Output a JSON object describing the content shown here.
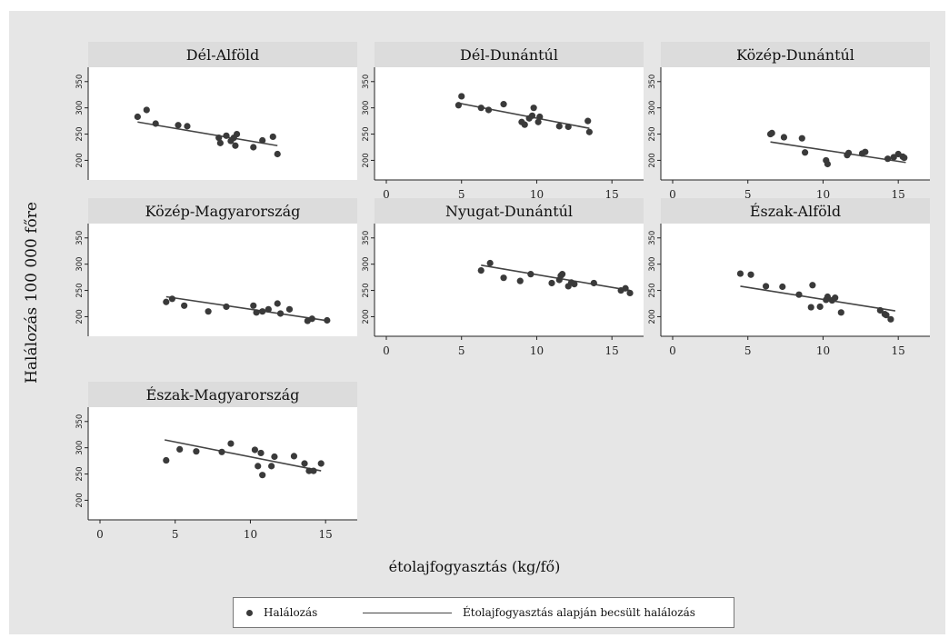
{
  "y_axis_title": "Halálozás 100 000 főre",
  "x_axis_title": "étolajfogyasztás (kg/fő)",
  "legend": {
    "points_label": "Halálozás",
    "line_label": "Étolajfogyasztás alapján becsült halálozás"
  },
  "colors": {
    "background": "#e6e6e6",
    "panel_header": "#dcdcdc",
    "marker": "#3a3a3a",
    "fit_line": "#444444"
  },
  "chart_data": {
    "type": "scatter",
    "layout": "small multiples with linear fit line",
    "xlim": [
      0,
      16.5
    ],
    "ylim": [
      180,
      360
    ],
    "x_ticks": [
      0,
      5,
      10,
      15
    ],
    "y_ticks": [
      200,
      250,
      300,
      350
    ],
    "grid": false,
    "legend_position": "bottom",
    "panels": [
      {
        "title": "Dél-Alföld",
        "x_axis_shown": false,
        "points": [
          [
            2.5,
            283
          ],
          [
            3.1,
            296
          ],
          [
            3.7,
            270
          ],
          [
            5.2,
            267
          ],
          [
            5.8,
            265
          ],
          [
            7.9,
            243
          ],
          [
            8,
            233
          ],
          [
            8.4,
            247
          ],
          [
            8.7,
            237
          ],
          [
            8.9,
            243
          ],
          [
            9,
            228
          ],
          [
            9.1,
            250
          ],
          [
            10.2,
            225
          ],
          [
            10.8,
            238
          ],
          [
            11.5,
            245
          ],
          [
            11.8,
            212
          ]
        ],
        "fit": [
          [
            2.5,
            273
          ],
          [
            11.8,
            228
          ]
        ]
      },
      {
        "title": "Dél-Dunántúl",
        "x_axis_shown": true,
        "points": [
          [
            4.8,
            305
          ],
          [
            5,
            322
          ],
          [
            6.3,
            300
          ],
          [
            6.8,
            296
          ],
          [
            7.8,
            307
          ],
          [
            9,
            273
          ],
          [
            9.2,
            268
          ],
          [
            9.5,
            280
          ],
          [
            9.7,
            285
          ],
          [
            9.8,
            300
          ],
          [
            10.1,
            273
          ],
          [
            10.2,
            283
          ],
          [
            11.5,
            265
          ],
          [
            12.1,
            264
          ],
          [
            13.4,
            275
          ],
          [
            13.5,
            254
          ]
        ],
        "fit": [
          [
            4.8,
            309
          ],
          [
            13.5,
            261
          ]
        ]
      },
      {
        "title": "Közép-Dunántúl",
        "x_axis_shown": true,
        "points": [
          [
            6.5,
            250
          ],
          [
            6.6,
            252
          ],
          [
            7.4,
            244
          ],
          [
            8.6,
            242
          ],
          [
            8.8,
            215
          ],
          [
            10.2,
            200
          ],
          [
            10.3,
            193
          ],
          [
            11.6,
            210
          ],
          [
            11.7,
            214
          ],
          [
            12.6,
            213
          ],
          [
            12.8,
            216
          ],
          [
            14.3,
            203
          ],
          [
            14.7,
            206
          ],
          [
            15,
            212
          ],
          [
            15.3,
            207
          ],
          [
            15.4,
            205
          ]
        ],
        "fit": [
          [
            6.5,
            235
          ],
          [
            15.5,
            196
          ]
        ]
      },
      {
        "title": "Közép-Magyarország",
        "x_axis_shown": false,
        "points": [
          [
            4.4,
            228
          ],
          [
            4.8,
            234
          ],
          [
            5.6,
            221
          ],
          [
            7.2,
            210
          ],
          [
            8.4,
            219
          ],
          [
            10.2,
            221
          ],
          [
            10.4,
            208
          ],
          [
            10.8,
            210
          ],
          [
            11.2,
            214
          ],
          [
            11.8,
            225
          ],
          [
            12,
            206
          ],
          [
            12.6,
            214
          ],
          [
            13.8,
            192
          ],
          [
            14.1,
            196
          ],
          [
            15.1,
            193
          ]
        ],
        "fit": [
          [
            4.4,
            238
          ],
          [
            15.2,
            192
          ]
        ]
      },
      {
        "title": "Nyugat-Dunántúl",
        "x_axis_shown": true,
        "points": [
          [
            6.3,
            288
          ],
          [
            6.9,
            302
          ],
          [
            7.8,
            274
          ],
          [
            8.9,
            268
          ],
          [
            9.6,
            281
          ],
          [
            11,
            264
          ],
          [
            11.5,
            270
          ],
          [
            11.6,
            278
          ],
          [
            11.7,
            281
          ],
          [
            12.1,
            258
          ],
          [
            12.3,
            265
          ],
          [
            12.5,
            262
          ],
          [
            13.8,
            264
          ],
          [
            15.6,
            250
          ],
          [
            15.9,
            254
          ],
          [
            16.2,
            245
          ]
        ],
        "fit": [
          [
            6.3,
            298
          ],
          [
            16.2,
            250
          ]
        ]
      },
      {
        "title": "Észak-Alföld",
        "x_axis_shown": true,
        "points": [
          [
            4.5,
            282
          ],
          [
            5.2,
            280
          ],
          [
            6.2,
            258
          ],
          [
            7.3,
            257
          ],
          [
            8.4,
            242
          ],
          [
            9.2,
            218
          ],
          [
            9.3,
            260
          ],
          [
            9.8,
            219
          ],
          [
            10.2,
            232
          ],
          [
            10.3,
            238
          ],
          [
            10.6,
            231
          ],
          [
            10.8,
            236
          ],
          [
            11.2,
            208
          ],
          [
            13.8,
            212
          ],
          [
            14.1,
            205
          ],
          [
            14.2,
            203
          ],
          [
            14.5,
            195
          ]
        ],
        "fit": [
          [
            4.5,
            258
          ],
          [
            14.8,
            211
          ]
        ]
      },
      {
        "title": "Észak-Magyarország",
        "x_axis_shown": true,
        "points": [
          [
            4.4,
            276
          ],
          [
            5.3,
            297
          ],
          [
            6.4,
            293
          ],
          [
            8.1,
            292
          ],
          [
            8.7,
            308
          ],
          [
            10.3,
            296
          ],
          [
            10.5,
            265
          ],
          [
            10.7,
            290
          ],
          [
            10.8,
            248
          ],
          [
            11.4,
            265
          ],
          [
            11.6,
            283
          ],
          [
            12.9,
            284
          ],
          [
            13.6,
            270
          ],
          [
            13.9,
            256
          ],
          [
            14.2,
            256
          ],
          [
            14.7,
            270
          ]
        ],
        "fit": [
          [
            4.3,
            315
          ],
          [
            14.7,
            256
          ]
        ]
      }
    ]
  }
}
